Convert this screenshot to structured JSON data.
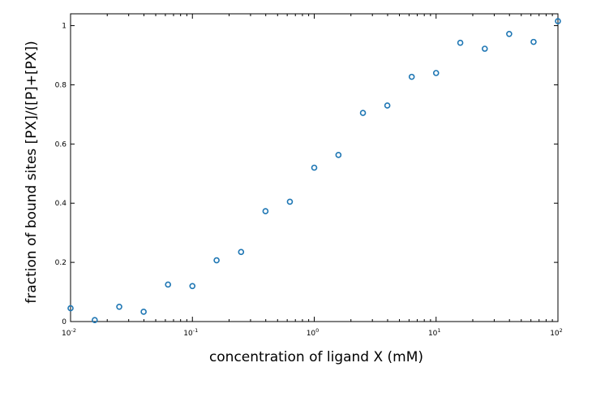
{
  "chart_data": {
    "type": "scatter",
    "title": "",
    "xlabel": "concentration of ligand X (mM)",
    "ylabel": "fraction of bound sites [PX]/([P]+[PX])",
    "xscale": "log",
    "xlim": [
      0.01,
      100
    ],
    "ylim": [
      0,
      1.04
    ],
    "x_ticks": [
      {
        "base": "10",
        "exp": "-2"
      },
      {
        "base": "10",
        "exp": "-1"
      },
      {
        "base": "10",
        "exp": "0"
      },
      {
        "base": "10",
        "exp": "1"
      },
      {
        "base": "10",
        "exp": "2"
      }
    ],
    "y_ticks": [
      "0",
      "0.2",
      "0.4",
      "0.6",
      "0.8",
      "1"
    ],
    "grid": false,
    "marker_color": "#1f77b4",
    "marker": "open-circle",
    "points": [
      {
        "x": 0.01,
        "y": 0.045
      },
      {
        "x": 0.0158,
        "y": 0.005
      },
      {
        "x": 0.0251,
        "y": 0.05
      },
      {
        "x": 0.0398,
        "y": 0.033
      },
      {
        "x": 0.0631,
        "y": 0.125
      },
      {
        "x": 0.1,
        "y": 0.12
      },
      {
        "x": 0.158,
        "y": 0.207
      },
      {
        "x": 0.251,
        "y": 0.235
      },
      {
        "x": 0.398,
        "y": 0.373
      },
      {
        "x": 0.631,
        "y": 0.405
      },
      {
        "x": 1.0,
        "y": 0.52
      },
      {
        "x": 1.58,
        "y": 0.563
      },
      {
        "x": 2.51,
        "y": 0.705
      },
      {
        "x": 3.98,
        "y": 0.73
      },
      {
        "x": 6.31,
        "y": 0.827
      },
      {
        "x": 10.0,
        "y": 0.84
      },
      {
        "x": 15.8,
        "y": 0.942
      },
      {
        "x": 25.1,
        "y": 0.922
      },
      {
        "x": 39.8,
        "y": 0.972
      },
      {
        "x": 63.1,
        "y": 0.945
      },
      {
        "x": 100.0,
        "y": 1.015
      }
    ]
  }
}
